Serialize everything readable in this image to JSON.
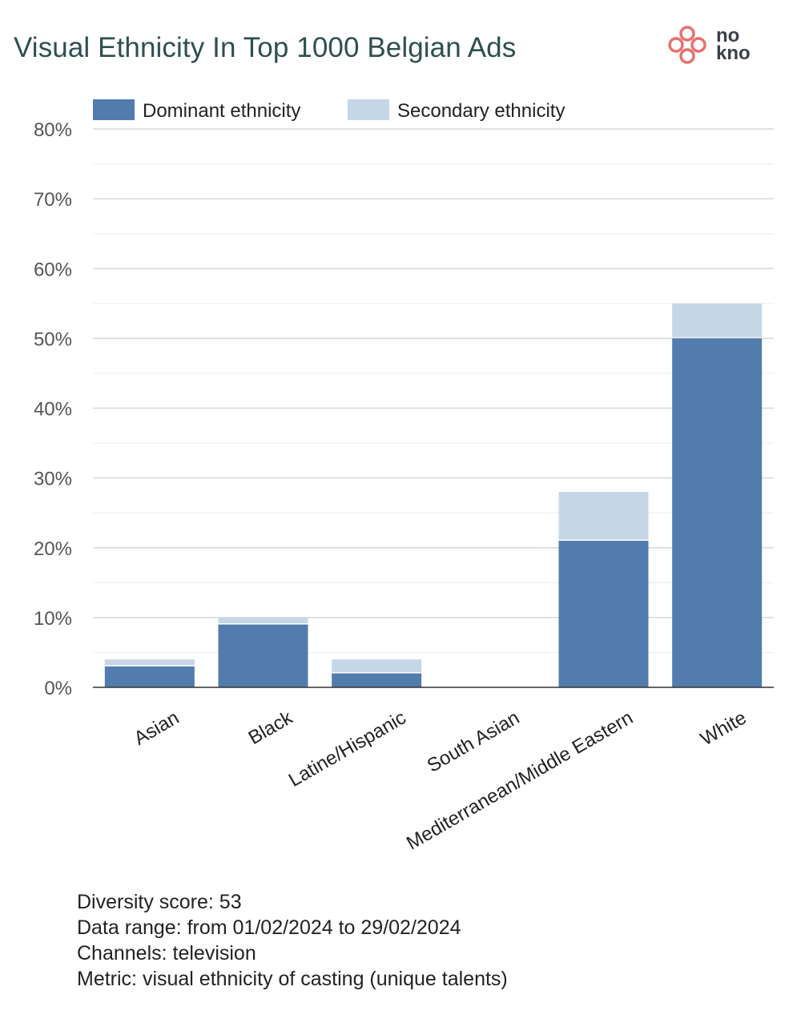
{
  "logo": {
    "line1": "no",
    "line2": "kno"
  },
  "chart_data": {
    "type": "bar",
    "stacked": true,
    "title": "Visual Ethnicity In Top 1000 Belgian Ads",
    "categories": [
      "Asian",
      "Black",
      "Latine/Hispanic",
      "South Asian",
      "Mediterranean/Middle Eastern",
      "White"
    ],
    "series": [
      {
        "name": "Dominant ethnicity",
        "values": [
          3,
          9,
          2,
          0,
          21,
          50
        ],
        "color": "#517cad"
      },
      {
        "name": "Secondary ethnicity",
        "values": [
          1,
          1,
          2,
          0,
          7,
          5
        ],
        "color": "#c5d7e6"
      }
    ],
    "ylim": [
      0,
      80
    ],
    "yticks": [
      0,
      10,
      20,
      30,
      40,
      50,
      60,
      70,
      80
    ],
    "ytick_format": "%",
    "grid": true,
    "legend": "top-left"
  },
  "footer": {
    "diversity_score": "Diversity score: 53",
    "data_range": "Data range: from 01/02/2024 to 29/02/2024",
    "channels": "Channels: television",
    "metric": "Metric: visual ethnicity of casting (unique talents)"
  }
}
